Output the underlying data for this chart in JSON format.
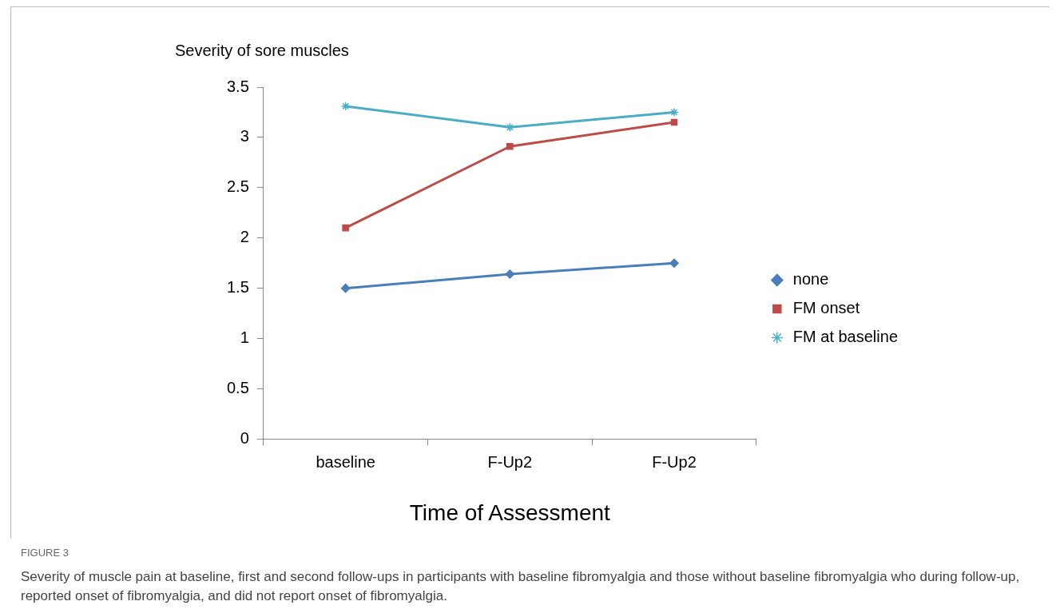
{
  "chart_data": {
    "type": "line",
    "ylabel": "Severity of sore muscles",
    "xlabel": "Time of Assessment",
    "categories": [
      "baseline",
      "F-Up2",
      "F-Up2"
    ],
    "series": [
      {
        "name": "none",
        "color": "#4a7ebb",
        "marker": "diamond",
        "values": [
          1.5,
          1.64,
          1.75
        ]
      },
      {
        "name": "FM onset",
        "color": "#be4b48",
        "marker": "square",
        "values": [
          2.1,
          2.91,
          3.15
        ]
      },
      {
        "name": "FM at baseline",
        "color": "#4bacc6",
        "marker": "cross",
        "values": [
          3.31,
          3.1,
          3.25
        ]
      }
    ],
    "ylim": [
      0,
      3.5
    ],
    "yticks": [
      0,
      0.5,
      1,
      1.5,
      2,
      2.5,
      3,
      3.5
    ],
    "legend": "right",
    "annotations": [
      "FIGURE 3",
      "Severity of muscle pain at baseline, first and second follow-ups in participants with baseline fibromyalgia and those without baseline fibromyalgia who during follow-up, reported onset of fibromyalgia, and did not report onset of fibromyalgia."
    ]
  }
}
